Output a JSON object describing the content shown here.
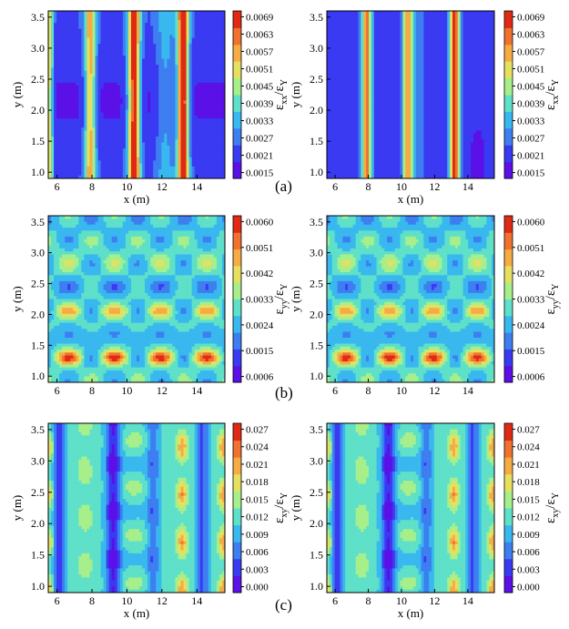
{
  "colors": {
    "colormap": [
      "#5a10e6",
      "#3a3af2",
      "#3d7ff0",
      "#38b8ef",
      "#5fe0c8",
      "#a6ef8a",
      "#e6e060",
      "#f5ac44",
      "#f0722e",
      "#e02a14"
    ]
  },
  "rows": [
    {
      "label": "(a)",
      "colorbar_label_main": "ε",
      "colorbar_label_sub": "xx",
      "colorbar_label_sep": "/ε",
      "colorbar_label_sub2": "Y",
      "colorbar_ticks": [
        "0.0069",
        "0.0063",
        "0.0057",
        "0.0051",
        "0.0045",
        "0.0039",
        "0.0033",
        "0.0027",
        "0.0021",
        "0.0015"
      ],
      "has_xlabel": true
    },
    {
      "label": "(b)",
      "colorbar_label_main": "ε",
      "colorbar_label_sub": "yy",
      "colorbar_label_sep": "/ε",
      "colorbar_label_sub2": "Y",
      "colorbar_ticks": [
        "0.0060",
        "0.0051",
        "0.0042",
        "0.0033",
        "0.0024",
        "0.0015",
        "0.0006"
      ],
      "has_xlabel": false
    },
    {
      "label": "(c)",
      "colorbar_label_main": "ε",
      "colorbar_label_sub": "xy",
      "colorbar_label_sep": "/ε",
      "colorbar_label_sub2": "Y",
      "colorbar_ticks": [
        "0.027",
        "0.024",
        "0.021",
        "0.018",
        "0.015",
        "0.012",
        "0.009",
        "0.006",
        "0.003",
        "0.000"
      ],
      "has_xlabel": true
    }
  ],
  "chart_data": [
    {
      "type": "heatmap",
      "title": "(a) left",
      "xlabel": "x (m)",
      "ylabel": "y (m)",
      "xlim": [
        5.5,
        15.6
      ],
      "ylim": [
        0.9,
        3.6
      ],
      "xticks": [
        "6",
        "8",
        "10",
        "12",
        "14"
      ],
      "yticks": [
        "1.0",
        "1.5",
        "2.0",
        "2.5",
        "3.0",
        "3.5"
      ],
      "colorbar_range": [
        0.0015,
        0.0069
      ],
      "pattern": "vertical high-strain bands near x = 5.6, 7.9, 10.4, 13.2; low elsewhere"
    },
    {
      "type": "heatmap",
      "title": "(a) right",
      "xlabel": "x (m)",
      "ylabel": "y (m)",
      "xlim": [
        5.5,
        15.6
      ],
      "ylim": [
        0.9,
        3.6
      ],
      "xticks": [
        "6",
        "8",
        "10",
        "12",
        "14"
      ],
      "yticks": [
        "1.0",
        "1.5",
        "2.0",
        "2.5",
        "3.0",
        "3.5"
      ],
      "colorbar_range": [
        0.0015,
        0.0069
      ],
      "pattern": "vertical high-strain bands near x = 7.9, 10.4, 13.2"
    },
    {
      "type": "heatmap",
      "title": "(b) left",
      "xlabel": "",
      "ylabel": "y (m)",
      "xlim": [
        5.5,
        15.6
      ],
      "ylim": [
        0.9,
        3.6
      ],
      "xticks": [
        "6",
        "8",
        "10",
        "12",
        "14"
      ],
      "yticks": [
        "1.0",
        "1.5",
        "2.0",
        "2.5",
        "3.0",
        "3.5"
      ],
      "colorbar_range": [
        0.0006,
        0.006
      ],
      "pattern": "cellular pattern with hot spots along y = 1.3 and y = 2.05"
    },
    {
      "type": "heatmap",
      "title": "(b) right",
      "xlabel": "",
      "ylabel": "y (m)",
      "xlim": [
        5.5,
        15.6
      ],
      "ylim": [
        0.9,
        3.6
      ],
      "xticks": [
        "6",
        "8",
        "10",
        "12",
        "14"
      ],
      "yticks": [
        "1.0",
        "1.5",
        "2.0",
        "2.5",
        "3.0",
        "3.5"
      ],
      "colorbar_range": [
        0.0006,
        0.006
      ],
      "pattern": "cellular pattern with hot spots along y = 1.3 and y = 2.05"
    },
    {
      "type": "heatmap",
      "title": "(c) left",
      "xlabel": "x (m)",
      "ylabel": "y (m)",
      "xlim": [
        5.5,
        15.6
      ],
      "ylim": [
        0.9,
        3.6
      ],
      "xticks": [
        "6",
        "8",
        "10",
        "12",
        "14"
      ],
      "yticks": [
        "1.0",
        "1.5",
        "2.0",
        "2.5",
        "3.0",
        "3.5"
      ],
      "colorbar_range": [
        0.0,
        0.027
      ],
      "pattern": "vertical low bands near x = 6.1, 9.2, 11.5, 14.3 with warm spots near x = 13.2 and 15.5"
    },
    {
      "type": "heatmap",
      "title": "(c) right",
      "xlabel": "x (m)",
      "ylabel": "y (m)",
      "xlim": [
        5.5,
        15.6
      ],
      "ylim": [
        0.9,
        3.6
      ],
      "xticks": [
        "6",
        "8",
        "10",
        "12",
        "14"
      ],
      "yticks": [
        "1.0",
        "1.5",
        "2.0",
        "2.5",
        "3.0",
        "3.5"
      ],
      "colorbar_range": [
        0.0,
        0.027
      ],
      "pattern": "vertical low bands near x = 6.1, 9.2, 11.5, 14.3 with warm spots near x = 13.2 and 15.5"
    }
  ]
}
